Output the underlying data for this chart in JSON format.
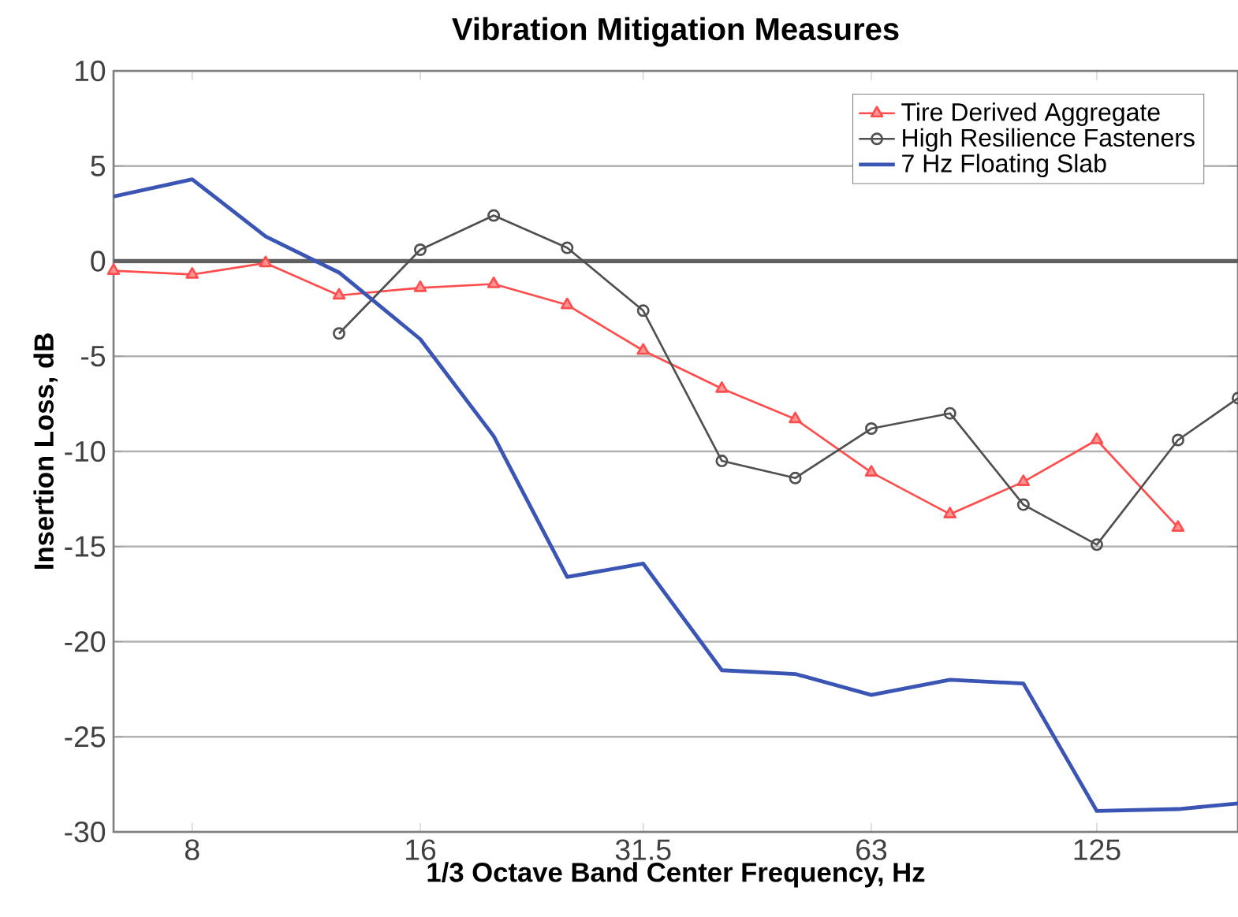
{
  "chart_data": {
    "type": "line",
    "title": "Vibration Mitigation Measures",
    "xlabel": "1/3 Octave Band Center Frequency, Hz",
    "ylabel": "Insertion Loss, dB",
    "log": "x",
    "xlim": [
      6.3,
      192
    ],
    "ylim": [
      -30,
      10
    ],
    "xticks": [
      8,
      16,
      31.5,
      63,
      125
    ],
    "yticks": [
      -30,
      -25,
      -20,
      -15,
      -10,
      -5,
      0,
      5,
      10
    ],
    "grid": "y",
    "legend": "top right",
    "ref_lines": [
      {
        "axis": "y",
        "value": 0,
        "color": "#606060"
      }
    ],
    "series": [
      {
        "name": "Tire Derived Aggregate",
        "color": "#ff4d4d",
        "marker": "triangle",
        "x": [
          6.3,
          8,
          10,
          12.5,
          16,
          20,
          25,
          31.5,
          40,
          50,
          63,
          80,
          100,
          125,
          160
        ],
        "values": [
          -0.5,
          -0.7,
          -0.1,
          -1.8,
          -1.4,
          -1.2,
          -2.3,
          -4.7,
          -6.7,
          -8.3,
          -11.1,
          -13.3,
          -11.6,
          -9.4,
          -14.0
        ]
      },
      {
        "name": "High Resilience Fasteners",
        "color": "#505050",
        "marker": "circle",
        "x": [
          12.5,
          16,
          20,
          25,
          31.5,
          40,
          50,
          63,
          80,
          100,
          125,
          160,
          192
        ],
        "values": [
          -3.8,
          0.6,
          2.4,
          0.7,
          -2.6,
          -10.5,
          -11.4,
          -8.8,
          -8.0,
          -12.8,
          -14.9,
          -9.4,
          -7.2
        ]
      },
      {
        "name": "7 Hz Floating Slab",
        "color": "#3a55b4",
        "marker": "none",
        "x": [
          6.3,
          8,
          10,
          12.5,
          16,
          20,
          25,
          31.5,
          40,
          50,
          63,
          80,
          100,
          125,
          160,
          192
        ],
        "values": [
          3.4,
          4.3,
          1.3,
          -0.6,
          -4.1,
          -9.2,
          -16.6,
          -15.9,
          -21.5,
          -21.7,
          -22.8,
          -22.0,
          -22.2,
          -28.9,
          -28.8,
          -28.5
        ]
      }
    ]
  }
}
